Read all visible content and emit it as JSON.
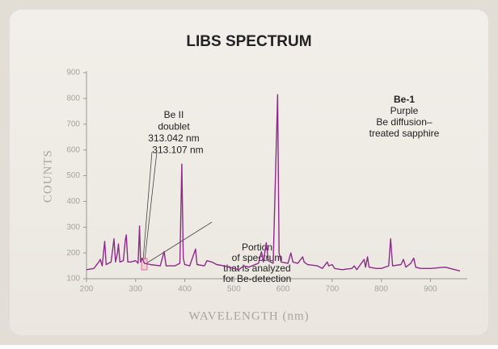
{
  "chart_data": {
    "type": "line",
    "title": "LIBS SPECTRUM",
    "xlabel": "WAVELENGTH (nm)",
    "ylabel": "COUNTS",
    "x": [
      200,
      215,
      225,
      228,
      232,
      237,
      240,
      250,
      256,
      259,
      263,
      265,
      268,
      275,
      279,
      281,
      284,
      290,
      300,
      305,
      308,
      310,
      313,
      318,
      330,
      350,
      358,
      362,
      380,
      390,
      394,
      397,
      400,
      410,
      422,
      425,
      440,
      445,
      455,
      465,
      480,
      500,
      510,
      520,
      530,
      550,
      556,
      560,
      566,
      570,
      580,
      589,
      592,
      596,
      610,
      616,
      620,
      630,
      640,
      643,
      650,
      670,
      680,
      690,
      693,
      700,
      705,
      720,
      740,
      745,
      750,
      765,
      768,
      772,
      775,
      790,
      800,
      815,
      819,
      823,
      840,
      845,
      850,
      860,
      866,
      870,
      880,
      900,
      930,
      960
    ],
    "series": [
      {
        "color": "#8e2a8a",
        "values": [
          135,
          140,
          165,
          175,
          150,
          245,
          155,
          165,
          255,
          165,
          200,
          235,
          165,
          170,
          250,
          270,
          165,
          165,
          170,
          160,
          305,
          165,
          180,
          160,
          155,
          150,
          205,
          150,
          150,
          160,
          545,
          180,
          155,
          150,
          215,
          155,
          150,
          170,
          165,
          155,
          150,
          140,
          135,
          150,
          145,
          160,
          205,
          165,
          240,
          170,
          160,
          815,
          200,
          165,
          160,
          200,
          165,
          160,
          185,
          165,
          155,
          150,
          140,
          165,
          150,
          155,
          140,
          135,
          140,
          150,
          135,
          175,
          145,
          185,
          145,
          140,
          140,
          150,
          255,
          150,
          155,
          175,
          145,
          160,
          180,
          145,
          140,
          140,
          145,
          130
        ]
      }
    ],
    "xlim": [
      200,
      975
    ],
    "ylim": [
      100,
      900
    ],
    "xticks": [
      200,
      300,
      400,
      500,
      600,
      700,
      800,
      900
    ],
    "yticks": [
      100,
      200,
      300,
      400,
      500,
      600,
      700,
      800,
      900
    ],
    "annotations": [
      {
        "lines": [
          "Be-1",
          "Purple",
          "Be diffusion–",
          "treated sapphire"
        ]
      },
      {
        "lines": [
          "Be II",
          "doublet",
          "313.042 nm",
          "313.107 nm"
        ]
      },
      {
        "lines": [
          "Portion",
          "of spectrum",
          "that is analyzed",
          "for Be-detection"
        ]
      }
    ]
  }
}
